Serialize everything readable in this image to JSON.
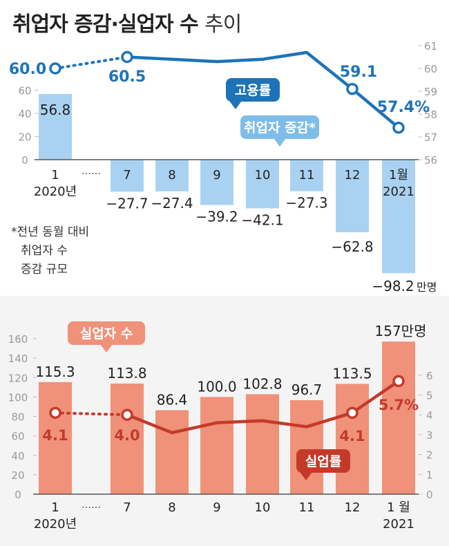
{
  "title": {
    "main": "취업자 증감·실업자 수",
    "sub": "추이"
  },
  "colors": {
    "employed_bar": "#a9d2f2",
    "employment_line": "#1e73b8",
    "unemployed_bar": "#f0917a",
    "unemployment_line": "#c43a2a",
    "bottom_panel_bg": "#f4f4f4",
    "axis_gray": "#999999"
  },
  "footnote": [
    "*전년 동월 대비",
    "취업자 수",
    "증감 규모"
  ],
  "chart_data": [
    {
      "type": "bar",
      "series_label": "취업자 증감*",
      "categories": [
        "1",
        "7",
        "8",
        "9",
        "10",
        "11",
        "12",
        "1월"
      ],
      "year_labels": [
        "2020년",
        "",
        "",
        "",
        "",
        "",
        "",
        "2021"
      ],
      "ellipsis": "……",
      "values": [
        56.8,
        -27.7,
        -27.4,
        -39.2,
        -42.1,
        -27.3,
        -62.8,
        -98.2
      ],
      "value_labels": [
        "56.8",
        "−27.7",
        "−27.4",
        "−39.2",
        "−42.1",
        "−27.3",
        "−62.8",
        "−98.2"
      ],
      "unit_label": "만명",
      "y_ticks": [
        "60",
        "40",
        "20",
        "0"
      ],
      "ylim": [
        0,
        60
      ],
      "line": {
        "type": "line",
        "label": "고용률",
        "values": [
          60.0,
          60.5,
          60.4,
          60.3,
          60.4,
          60.7,
          59.1,
          57.4
        ],
        "value_labels": [
          "60.0",
          "60.5",
          "",
          "",
          "",
          "",
          "59.1",
          "57.4%"
        ],
        "y_ticks": [
          "61",
          "60",
          "59",
          "58",
          "57",
          "56"
        ],
        "ylim": [
          56,
          61
        ]
      }
    },
    {
      "type": "bar",
      "series_label": "실업자 수",
      "categories": [
        "1",
        "7",
        "8",
        "9",
        "10",
        "11",
        "12",
        "1 월"
      ],
      "year_labels": [
        "2020년",
        "",
        "",
        "",
        "",
        "",
        "",
        "2021"
      ],
      "ellipsis": "……",
      "values": [
        115.3,
        113.8,
        86.4,
        100.0,
        102.8,
        96.7,
        113.5,
        157
      ],
      "value_labels": [
        "115.3",
        "113.8",
        "86.4",
        "100.0",
        "102.8",
        "96.7",
        "113.5",
        "157만명"
      ],
      "y_ticks": [
        "160",
        "140",
        "120",
        "100",
        "80",
        "60",
        "40",
        "20",
        "0"
      ],
      "ylim": [
        0,
        160
      ],
      "line": {
        "type": "line",
        "label": "실업률",
        "values": [
          4.1,
          4.0,
          3.1,
          3.6,
          3.7,
          3.4,
          4.1,
          5.7
        ],
        "value_labels": [
          "4.1",
          "4.0",
          "",
          "",
          "",
          "",
          "4.1",
          "5.7%"
        ],
        "y_ticks": [
          "6",
          "5",
          "4",
          "3",
          "2",
          "1",
          "0"
        ],
        "ylim": [
          0,
          6
        ]
      }
    }
  ]
}
